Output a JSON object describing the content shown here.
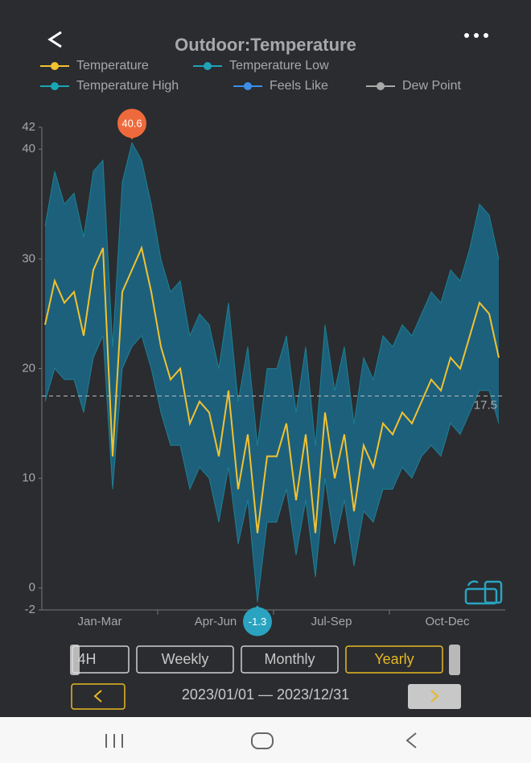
{
  "header": {
    "title": "Outdoor:Temperature"
  },
  "chart_data": {
    "type": "band-line",
    "legend": [
      "Temperature",
      "Temperature Low",
      "Temperature High",
      "Feels Like",
      "Dew Point"
    ],
    "series": [
      {
        "name": "Temperature",
        "color": "#f2c230",
        "values": [
          24,
          28,
          26,
          27,
          23,
          29,
          31,
          12,
          27,
          29,
          31,
          27,
          22,
          19,
          20,
          15,
          17,
          16,
          12,
          18,
          9,
          14,
          5,
          12,
          12,
          15,
          8,
          14,
          5,
          16,
          10,
          14,
          7,
          13,
          11,
          15,
          14,
          16,
          15,
          17,
          19,
          18,
          21,
          20,
          23,
          26,
          25,
          21
        ]
      },
      {
        "name": "Temperature Low",
        "color": "#1fa3b8",
        "values": [
          17,
          20,
          19,
          19,
          16,
          21,
          23,
          9,
          20,
          22,
          23,
          20,
          16,
          13,
          13,
          9,
          11,
          10,
          6,
          11,
          4,
          8,
          -1.3,
          6,
          6,
          9,
          3,
          8,
          1,
          10,
          4,
          8,
          2,
          7,
          6,
          9,
          9,
          11,
          10,
          12,
          13,
          12,
          15,
          14,
          16,
          18,
          18,
          15
        ]
      },
      {
        "name": "Temperature High",
        "color": "#18a7b5",
        "values": [
          33,
          38,
          35,
          36,
          32,
          38,
          39,
          22,
          37,
          40.6,
          39,
          35,
          30,
          27,
          28,
          23,
          25,
          24,
          20,
          26,
          17,
          22,
          13,
          20,
          20,
          23,
          16,
          22,
          13,
          24,
          18,
          22,
          15,
          21,
          19,
          23,
          22,
          24,
          23,
          25,
          27,
          26,
          29,
          28,
          31,
          35,
          34,
          30
        ]
      },
      {
        "name": "Feels Like",
        "color": "#3b8fe8"
      },
      {
        "name": "Dew Point",
        "color": "#a9a9a9"
      }
    ],
    "quarters": [
      "Jan-Mar",
      "Apr-Jun",
      "Jul-Sep",
      "Oct-Dec"
    ],
    "ylim": [
      -2,
      42
    ],
    "yticks": [
      -2,
      0,
      10,
      20,
      30,
      40,
      42
    ],
    "average": 17.5,
    "band_color": "#1b6a8a"
  },
  "controls": {
    "buttons": [
      "4H",
      "Weekly",
      "Monthly",
      "Yearly"
    ],
    "selected": 3,
    "range": "2023/01/01 — 2023/12/31"
  }
}
